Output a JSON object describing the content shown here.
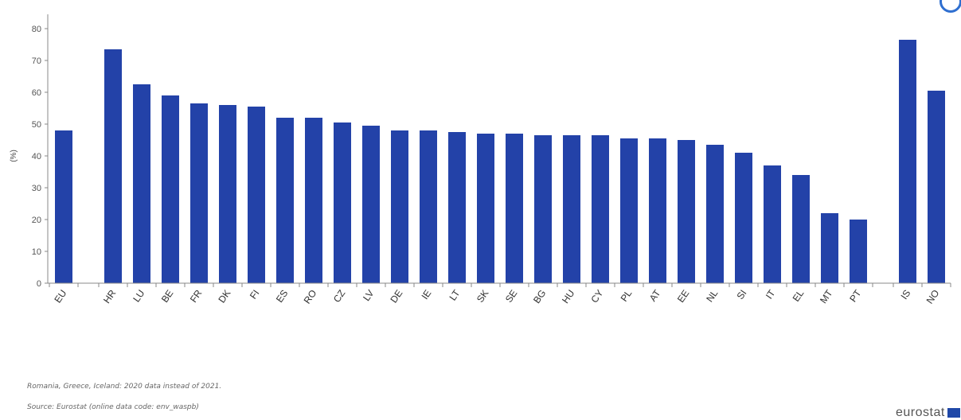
{
  "chart_data": {
    "type": "bar",
    "ylabel": "(%)",
    "ylim": [
      0,
      80
    ],
    "yticks": [
      0,
      10,
      20,
      30,
      40,
      50,
      60,
      70,
      80
    ],
    "bar_color": "#2342a8",
    "grid": false,
    "categories": [
      "EU",
      "HR",
      "LU",
      "BE",
      "FR",
      "DK",
      "FI",
      "ES",
      "RO",
      "CZ",
      "LV",
      "DE",
      "IE",
      "LT",
      "SK",
      "SE",
      "BG",
      "HU",
      "CY",
      "PL",
      "AT",
      "EE",
      "NL",
      "SI",
      "IT",
      "EL",
      "MT",
      "PT",
      "IS",
      "NO"
    ],
    "groups": [
      [
        "EU"
      ],
      [
        "HR",
        "LU",
        "BE",
        "FR",
        "DK",
        "FI",
        "ES",
        "RO",
        "CZ",
        "LV",
        "DE",
        "IE",
        "LT",
        "SK",
        "SE",
        "BG",
        "HU",
        "CY",
        "PL",
        "AT",
        "EE",
        "NL",
        "SI",
        "IT",
        "EL",
        "MT",
        "PT"
      ],
      [
        "IS",
        "NO"
      ]
    ],
    "values": [
      48,
      73.5,
      62.5,
      59,
      56.5,
      56,
      55.5,
      52,
      52,
      50.5,
      49.5,
      48,
      48,
      47.5,
      47,
      47,
      46.5,
      46.5,
      46.5,
      45.5,
      45.5,
      45,
      43.5,
      41,
      37,
      34,
      22,
      20,
      76.5,
      60.5
    ]
  },
  "footnotes": {
    "note": "Romania, Greece, Iceland: 2020 data instead of 2021.",
    "source": "Source: Eurostat (online data code: env_waspb)"
  },
  "logo": {
    "text": "eurostat"
  }
}
